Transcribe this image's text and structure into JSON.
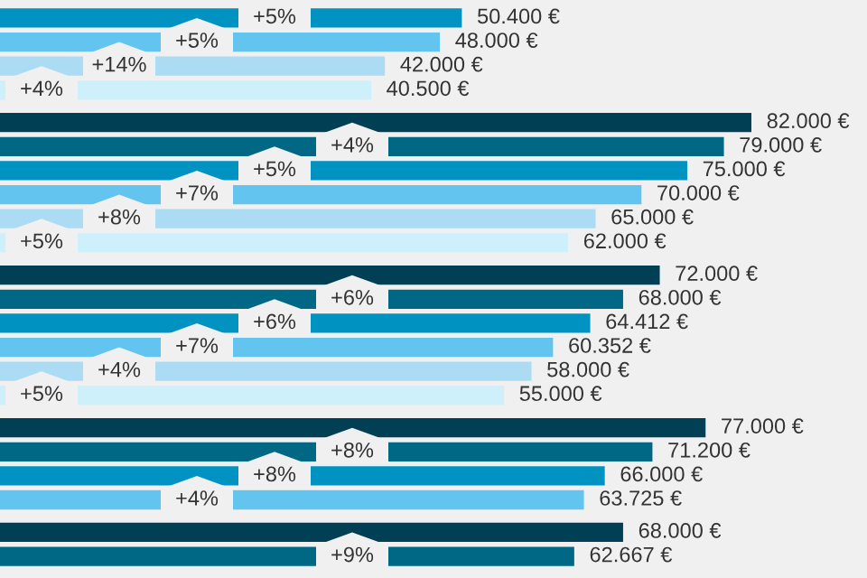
{
  "chart_data": {
    "type": "bar",
    "orientation": "horizontal",
    "categories": [
      null,
      null,
      null,
      null,
      null,
      null,
      null,
      null,
      null,
      null,
      null,
      null,
      null,
      null,
      null,
      null,
      null,
      null,
      null,
      null,
      null,
      null
    ],
    "values": [
      50400,
      48000,
      42000,
      40500,
      82000,
      79000,
      75000,
      70000,
      65000,
      62000,
      72000,
      68000,
      64412,
      60352,
      58000,
      55000,
      77000,
      71200,
      66000,
      63725,
      68000,
      62667
    ],
    "colors": [
      "#0093c2",
      "#63c5ef",
      "#acdcf3",
      "#cdf0fb",
      "#003f54",
      "#006885",
      "#0093c2",
      "#63c5ef",
      "#acdcf3",
      "#cdf0fb",
      "#003f54",
      "#006885",
      "#0093c2",
      "#63c5ef",
      "#acdcf3",
      "#cdf0fb",
      "#003f54",
      "#006885",
      "#0093c2",
      "#63c5ef",
      "#003f54",
      "#006885"
    ],
    "value_labels": [
      "50.400 €",
      "48.000 €",
      "42.000 €",
      "40.500 €",
      "82.000 €",
      "79.000 €",
      "75.000 €",
      "70.000 €",
      "65.000 €",
      "62.000 €",
      "72.000 €",
      "68.000 €",
      "64.412 €",
      "60.352 €",
      "58.000 €",
      "55.000 €",
      "77.000 €",
      "71.200 €",
      "66.000 €",
      "63.725 €",
      "68.000 €",
      "62.667 €"
    ],
    "annotations": [
      "+5%",
      "+5%",
      "+14%",
      "+4%",
      "+4%",
      "+5%",
      "+7%",
      "+8%",
      "+5%",
      "+6%",
      "+6%",
      "+7%",
      "+4%",
      "+5%",
      "+8%",
      "+8%",
      "+4%",
      "+9%"
    ]
  }
}
